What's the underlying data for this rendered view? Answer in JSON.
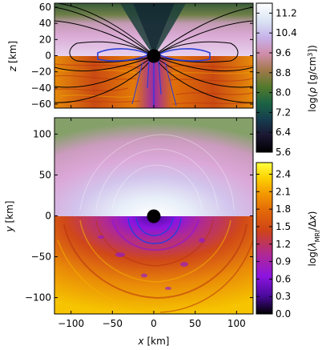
{
  "chart_data": [
    {
      "type": "heatmap",
      "panel": "top (meridional slice)",
      "xlim": [
        -120,
        120
      ],
      "ylim": [
        -65,
        65
      ],
      "ylabel": "z [km]",
      "ylabel_var": "z",
      "ylabel_unit": "[km]",
      "yticks": [
        60,
        40,
        20,
        0,
        -20,
        -40,
        -60
      ],
      "ytick_labels": [
        "60",
        "40",
        "20",
        "0",
        "−20",
        "−40",
        "−60"
      ],
      "upper_half_field": "log(ρ [g/cm³])",
      "lower_half_field": "log(λ_MRI/Δx)",
      "contours": "black density isocontours + blue contours near midplane",
      "central_black_hole_radius_km": 8,
      "grid": false
    },
    {
      "type": "heatmap",
      "panel": "bottom (equatorial slice)",
      "xlim": [
        -120,
        120
      ],
      "ylim": [
        -120,
        120
      ],
      "xlabel": "x [km]",
      "xlabel_var": "x",
      "xlabel_unit": "[km]",
      "ylabel": "y [km]",
      "ylabel_var": "y",
      "ylabel_unit": "[km]",
      "xticks": [
        -100,
        -50,
        0,
        50,
        100
      ],
      "xtick_labels": [
        "−100",
        "−50",
        "0",
        "50",
        "100"
      ],
      "yticks": [
        100,
        50,
        0,
        -50,
        -100
      ],
      "ytick_labels": [
        "100",
        "50",
        "0",
        "−50",
        "−100"
      ],
      "upper_half_field": "log(ρ [g/cm³])",
      "lower_half_field": "log(λ_MRI/Δx)",
      "central_black_hole_radius_km": 8,
      "grid": false
    }
  ],
  "colorbars": {
    "density": {
      "label": "log(ρ [g/cm³])",
      "colormap": "cubehelix",
      "range": [
        5.6,
        11.6
      ],
      "ticks": [
        11.2,
        10.4,
        9.6,
        8.8,
        8.0,
        7.2,
        6.4,
        5.6
      ],
      "tick_labels": [
        "11.2",
        "10.4",
        "9.6",
        "8.8",
        "8.0",
        "7.2",
        "6.4",
        "5.6"
      ],
      "colors": [
        "#000000",
        "#1a1530",
        "#163d4f",
        "#1b6444",
        "#547a2c",
        "#a1794a",
        "#d08daa",
        "#c6b2ea",
        "#d9e3f3",
        "#ffffff"
      ]
    },
    "mri": {
      "label": "log(λ_MRI/Δx)",
      "colormap": "gnuplot",
      "range": [
        0.0,
        2.6
      ],
      "ticks": [
        2.4,
        2.1,
        1.8,
        1.5,
        1.2,
        0.9,
        0.6,
        0.3,
        0.0
      ],
      "tick_labels": [
        "2.4",
        "2.1",
        "1.8",
        "1.5",
        "1.2",
        "0.9",
        "0.6",
        "0.3",
        "0.0"
      ],
      "colors": [
        "#000000",
        "#4a0a9c",
        "#8c14e0",
        "#b12a90",
        "#cf4418",
        "#e36808",
        "#f39b00",
        "#fcd200",
        "#ffff40"
      ]
    }
  },
  "colors": {
    "axes": "#000000",
    "contour_black": "#000000",
    "contour_blue": "#2a3fd9",
    "black_hole": "#000000"
  }
}
